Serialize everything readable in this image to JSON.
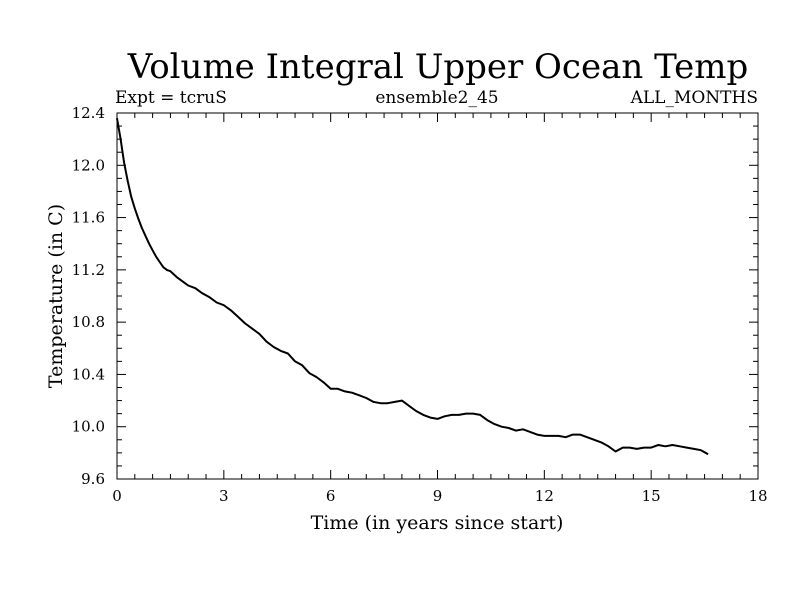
{
  "chart_data": {
    "type": "line",
    "title": "Volume Integral Upper Ocean Temp",
    "subtitle_left": "Expt = tcruS",
    "subtitle_center": "ensemble2_45",
    "subtitle_right": "ALL_MONTHS",
    "xlabel": "Time (in years since start)",
    "ylabel": "Temperature (in C)",
    "xlim": [
      0,
      18
    ],
    "ylim": [
      9.6,
      12.4
    ],
    "x_ticks": [
      "0",
      "3",
      "6",
      "9",
      "12",
      "15",
      "18"
    ],
    "y_ticks": [
      "9.6",
      "10.0",
      "10.4",
      "10.8",
      "11.2",
      "11.6",
      "12.0",
      "12.4"
    ],
    "grid": false,
    "series": [
      {
        "x": [
          0.0,
          0.1,
          0.2,
          0.3,
          0.4,
          0.5,
          0.6,
          0.7,
          0.8,
          0.9,
          1.0,
          1.1,
          1.2,
          1.3,
          1.4,
          1.5,
          1.7,
          1.9,
          2.0,
          2.2,
          2.4,
          2.6,
          2.8,
          3.0,
          3.2,
          3.4,
          3.6,
          3.8,
          4.0,
          4.2,
          4.4,
          4.6,
          4.8,
          5.0,
          5.2,
          5.4,
          5.6,
          5.8,
          6.0,
          6.2,
          6.4,
          6.6,
          6.8,
          7.0,
          7.2,
          7.4,
          7.6,
          7.8,
          8.0,
          8.2,
          8.4,
          8.6,
          8.8,
          9.0,
          9.2,
          9.4,
          9.6,
          9.8,
          10.0,
          10.2,
          10.4,
          10.6,
          10.8,
          11.0,
          11.2,
          11.4,
          11.6,
          11.8,
          12.0,
          12.2,
          12.4,
          12.6,
          12.8,
          13.0,
          13.2,
          13.4,
          13.6,
          13.8,
          14.0,
          14.2,
          14.4,
          14.6,
          14.8,
          15.0,
          15.2,
          15.4,
          15.6,
          15.8,
          16.0,
          16.2,
          16.4,
          16.6
        ],
        "y": [
          12.36,
          12.2,
          12.02,
          11.88,
          11.76,
          11.67,
          11.59,
          11.52,
          11.46,
          11.4,
          11.35,
          11.3,
          11.26,
          11.22,
          11.2,
          11.19,
          11.14,
          11.1,
          11.08,
          11.06,
          11.02,
          10.99,
          10.95,
          10.93,
          10.89,
          10.84,
          10.79,
          10.75,
          10.71,
          10.65,
          10.61,
          10.58,
          10.56,
          10.5,
          10.47,
          10.41,
          10.38,
          10.34,
          10.29,
          10.29,
          10.27,
          10.26,
          10.24,
          10.22,
          10.19,
          10.18,
          10.18,
          10.19,
          10.2,
          10.16,
          10.12,
          10.09,
          10.07,
          10.06,
          10.08,
          10.09,
          10.09,
          10.1,
          10.1,
          10.09,
          10.05,
          10.02,
          10.0,
          9.99,
          9.97,
          9.98,
          9.96,
          9.94,
          9.93,
          9.93,
          9.93,
          9.92,
          9.94,
          9.94,
          9.92,
          9.9,
          9.88,
          9.85,
          9.81,
          9.84,
          9.84,
          9.83,
          9.84,
          9.84,
          9.86,
          9.85,
          9.86,
          9.85,
          9.84,
          9.83,
          9.82,
          9.79
        ]
      }
    ]
  }
}
